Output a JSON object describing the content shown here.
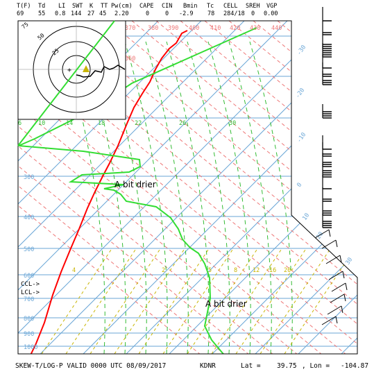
{
  "header": {
    "labels": [
      "T(F)",
      "Td",
      "LI",
      "SWT",
      "K",
      "TT",
      "Pw(cm)",
      "CAPE",
      "CIN",
      "Bmin",
      "Tc",
      "CELL",
      "SREH",
      "VGP"
    ],
    "values": [
      "69",
      "55",
      "0.8",
      "144",
      "27",
      "45",
      "2.20",
      "0",
      "0",
      "-2.9",
      "78",
      "284/18",
      "0",
      "0.00"
    ]
  },
  "footer": {
    "title": "SKEW-T/LOG-P VALID 0000 UTC 08/09/2017",
    "station": "KDNR",
    "lat_label": "Lat =",
    "lat": "39.75",
    "lon_label": ", Lon =",
    "lon": "-104.87"
  },
  "annotations": {
    "drier_upper": "A bit drier",
    "drier_lower": "A bit drier",
    "ccl": "CCL->",
    "lcl": "LCL->",
    "hodo_rings": [
      "75",
      "50",
      "25"
    ]
  },
  "colors": {
    "temperature": "#ff0000",
    "dewpoint": "#33dd33",
    "isobar": "#6aa6d6",
    "isotherm": "#6aa6d6",
    "dry_adiabat": "#ee7777",
    "moist_adiabat": "#33bb33",
    "mixing_ratio": "#c8b400"
  },
  "chart_data": {
    "type": "line",
    "subtype": "skew-t log-p",
    "pressure_levels": [
      "300",
      "400",
      "500",
      "600",
      "700",
      "800",
      "900",
      "1000"
    ],
    "isotherm_labels": [
      "-30",
      "-20",
      "-10",
      "0",
      "10",
      "20",
      "30"
    ],
    "theta_labels": [
      "370",
      "380",
      "390",
      "400",
      "410",
      "420",
      "430",
      "440",
      "360"
    ],
    "mixing_ratio_labels": [
      "4",
      "2",
      "5",
      "8",
      "12",
      "16",
      "20"
    ],
    "dewpoint_top_labels": [
      "6",
      "10",
      "14",
      "18",
      "22",
      "26",
      "30"
    ],
    "series": [
      {
        "name": "Temperature",
        "points": [
          [
            400,
            520
          ],
          [
            520,
            495
          ],
          [
            640,
            465
          ],
          [
            760,
            425
          ],
          [
            880,
            392
          ],
          [
            1020,
            358
          ],
          [
            1140,
            330
          ],
          [
            1260,
            300
          ],
          [
            1370,
            276
          ],
          [
            1480,
            254
          ],
          [
            1580,
            235
          ],
          [
            1700,
            210
          ],
          [
            1830,
            178
          ],
          [
            1930,
            155
          ],
          [
            2050,
            135
          ],
          [
            2160,
            118
          ],
          [
            2240,
            100
          ],
          [
            2330,
            84
          ],
          [
            2440,
            70
          ],
          [
            2540,
            62
          ],
          [
            2620,
            48
          ],
          [
            2700,
            44
          ]
        ]
      },
      {
        "name": "Dew point",
        "points": [
          [
            3300,
            520
          ],
          [
            3050,
            490
          ],
          [
            2950,
            470
          ],
          [
            2990,
            450
          ],
          [
            3030,
            430
          ],
          [
            3020,
            400
          ],
          [
            2950,
            380
          ],
          [
            2860,
            365
          ],
          [
            2740,
            357
          ],
          [
            2630,
            345
          ],
          [
            2570,
            330
          ],
          [
            2460,
            314
          ],
          [
            2250,
            298
          ],
          [
            1820,
            290
          ],
          [
            1740,
            280
          ],
          [
            1640,
            274
          ],
          [
            1500,
            272
          ],
          [
            1780,
            266
          ],
          [
            1020,
            262
          ],
          [
            1180,
            252
          ],
          [
            1860,
            248
          ],
          [
            2020,
            240
          ],
          [
            2010,
            230
          ],
          [
            1200,
            218
          ],
          [
            270,
            210
          ],
          [
            500,
            200
          ],
          [
            1300,
            160
          ],
          [
            1900,
            120
          ],
          [
            2800,
            80
          ],
          [
            3700,
            40
          ]
        ]
      }
    ],
    "hodograph": {
      "points": [
        [
          1100,
          1080
        ],
        [
          1150,
          1090
        ],
        [
          1200,
          1110
        ],
        [
          1300,
          1100
        ],
        [
          1370,
          1020
        ],
        [
          1460,
          1040
        ],
        [
          1500,
          960
        ],
        [
          1580,
          1000
        ],
        [
          1640,
          980
        ],
        [
          1700,
          940
        ],
        [
          1800,
          1000
        ]
      ],
      "storm_motion": [
        1240,
        1000
      ]
    },
    "wind_barbs_right": [
      "2kt",
      "5kt",
      "25kt",
      "30kt",
      "35kt",
      "40kt",
      "45kt",
      "50kt",
      "50kt",
      "40kt",
      "30kt",
      "25kt",
      "20kt",
      "15kt",
      "10kt",
      "10kt",
      "5kt"
    ]
  }
}
